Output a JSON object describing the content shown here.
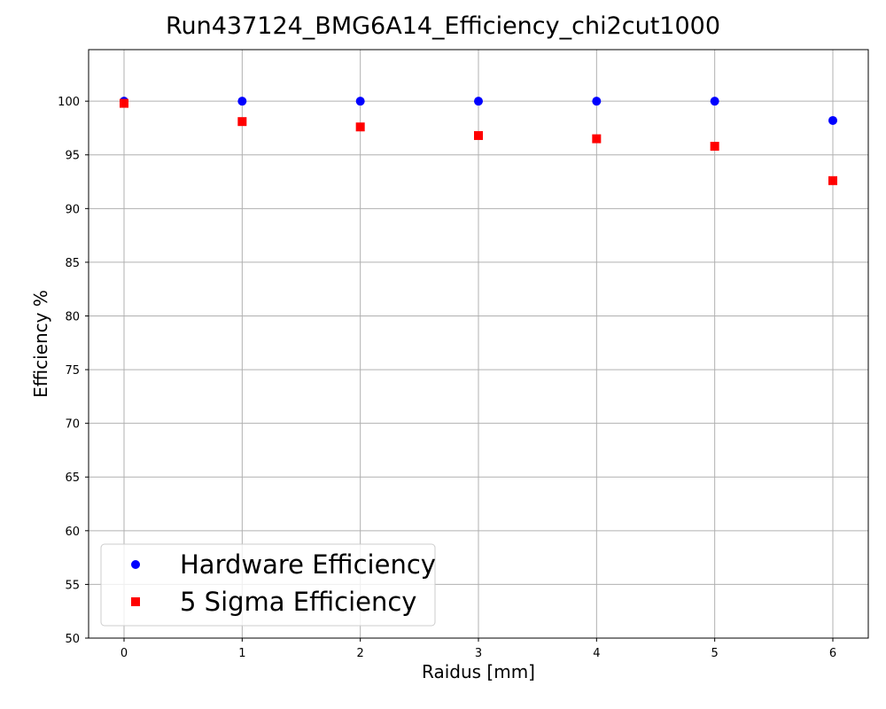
{
  "chart_data": {
    "type": "scatter",
    "title": "Run437124_BMG6A14_Efficiency_chi2cut1000",
    "xlabel": "Raidus [mm]",
    "ylabel": "Efficiency %",
    "xlim": [
      -0.3,
      6.3
    ],
    "ylim": [
      50,
      104.8
    ],
    "x_ticks": [
      0,
      1,
      2,
      3,
      4,
      5,
      6
    ],
    "y_ticks": [
      50,
      55,
      60,
      65,
      70,
      75,
      80,
      85,
      90,
      95,
      100
    ],
    "grid": true,
    "legend_position": "lower-left",
    "series": [
      {
        "name": "Hardware Efficiency",
        "marker": "circle",
        "color": "#0000ff",
        "x": [
          0,
          1,
          2,
          3,
          4,
          5,
          6
        ],
        "y": [
          100,
          100,
          100,
          100,
          100,
          100,
          98.2
        ]
      },
      {
        "name": "5 Sigma Efficiency",
        "marker": "square",
        "color": "#ff0000",
        "x": [
          0,
          1,
          2,
          3,
          4,
          5,
          6
        ],
        "y": [
          99.8,
          98.1,
          97.6,
          96.8,
          96.5,
          95.8,
          92.6
        ]
      }
    ]
  }
}
